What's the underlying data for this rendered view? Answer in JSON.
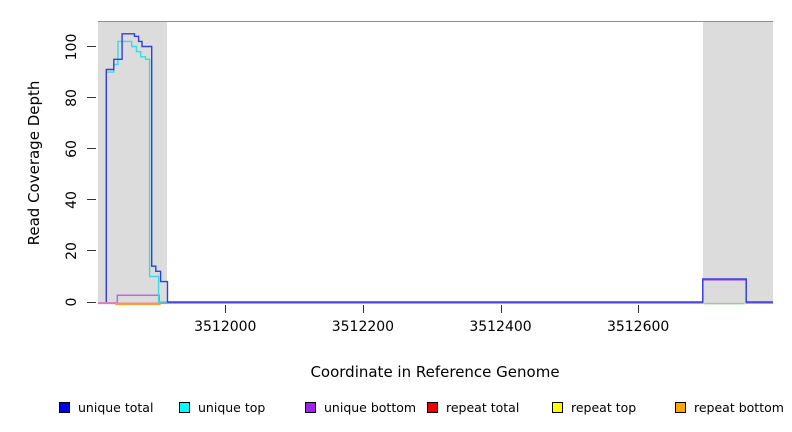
{
  "y_axis": {
    "label": "Read Coverage Depth",
    "ticks": [
      "0",
      "20",
      "40",
      "60",
      "80",
      "100"
    ],
    "tick_values": [
      0,
      20,
      40,
      60,
      80,
      100
    ]
  },
  "x_axis": {
    "label": "Coordinate in Reference Genome",
    "ticks": [
      "3512000",
      "3512200",
      "3512400",
      "3512600"
    ],
    "tick_values": [
      3512000,
      3512200,
      3512400,
      3512600
    ]
  },
  "legend": {
    "items": [
      {
        "id": "unique-total",
        "label": "unique total",
        "color": "#0000EE"
      },
      {
        "id": "unique-top",
        "label": "unique top",
        "color": "#00FFFF"
      },
      {
        "id": "unique-bottom",
        "label": "unique bottom",
        "color": "#A020F0"
      },
      {
        "id": "repeat-total",
        "label": "repeat total",
        "color": "#EE0000"
      },
      {
        "id": "repeat-top",
        "label": "repeat top",
        "color": "#FFFF00"
      },
      {
        "id": "repeat-bottom",
        "label": "repeat bottom",
        "color": "#FFA500"
      }
    ]
  },
  "chart_data": {
    "type": "line",
    "subtype": "step-coverage",
    "title": "",
    "xlabel": "Coordinate in Reference Genome",
    "ylabel": "Read Coverage Depth",
    "xlim": [
      3511815,
      3512796
    ],
    "ylim": [
      0,
      110
    ],
    "grid": false,
    "legend_position": "bottom",
    "repeat_region_color": "#dcdcdc",
    "repeat_regions": [
      [
        3511815,
        3511916
      ],
      [
        3512694,
        3512796
      ]
    ],
    "series": [
      {
        "name": "unique bottom",
        "line_color": "#b46be4",
        "points": [
          [
            3511815,
            0
          ],
          [
            3511843,
            0
          ],
          [
            3511843,
            3
          ],
          [
            3511904,
            3
          ],
          [
            3511904,
            0
          ],
          [
            3512694,
            0
          ],
          [
            3512694,
            9
          ],
          [
            3512757,
            9
          ],
          [
            3512757,
            0
          ],
          [
            3512796,
            0
          ]
        ]
      },
      {
        "name": "repeat total",
        "line_color": "#f47c7c",
        "points": [
          [
            3511815,
            0
          ],
          [
            3511916,
            0
          ]
        ]
      },
      {
        "name": "repeat bottom",
        "line_color": "#ffa030",
        "points": [
          [
            3511840,
            0
          ],
          [
            3511906,
            0
          ]
        ]
      },
      {
        "name": "repeat top",
        "line_color": "#8fcf8f",
        "points": [
          [
            3512696,
            0
          ],
          [
            3512755,
            0
          ]
        ]
      },
      {
        "name": "unique top",
        "line_color": "#35dbe8",
        "points": [
          [
            3511827,
            0
          ],
          [
            3511827,
            90
          ],
          [
            3511838,
            90
          ],
          [
            3511838,
            93
          ],
          [
            3511844,
            93
          ],
          [
            3511844,
            102
          ],
          [
            3511864,
            102
          ],
          [
            3511864,
            100
          ],
          [
            3511871,
            100
          ],
          [
            3511871,
            98
          ],
          [
            3511877,
            98
          ],
          [
            3511877,
            96
          ],
          [
            3511884,
            96
          ],
          [
            3511884,
            95
          ],
          [
            3511890,
            95
          ],
          [
            3511890,
            10
          ],
          [
            3511903,
            10
          ],
          [
            3511903,
            0
          ],
          [
            3511916,
            0
          ]
        ]
      },
      {
        "name": "unique total",
        "line_color": "#3140dc",
        "points": [
          [
            3511827,
            0
          ],
          [
            3511827,
            91
          ],
          [
            3511838,
            91
          ],
          [
            3511838,
            95
          ],
          [
            3511850,
            95
          ],
          [
            3511850,
            105
          ],
          [
            3511868,
            105
          ],
          [
            3511868,
            104
          ],
          [
            3511874,
            104
          ],
          [
            3511874,
            102
          ],
          [
            3511879,
            102
          ],
          [
            3511879,
            100
          ],
          [
            3511893,
            100
          ],
          [
            3511893,
            14
          ],
          [
            3511899,
            14
          ],
          [
            3511899,
            12
          ],
          [
            3511906,
            12
          ],
          [
            3511906,
            8
          ],
          [
            3511916,
            8
          ],
          [
            3511916,
            0
          ],
          [
            3512694,
            0
          ],
          [
            3512694,
            9
          ],
          [
            3512757,
            9
          ],
          [
            3512757,
            0
          ],
          [
            3512796,
            0
          ]
        ]
      }
    ]
  }
}
